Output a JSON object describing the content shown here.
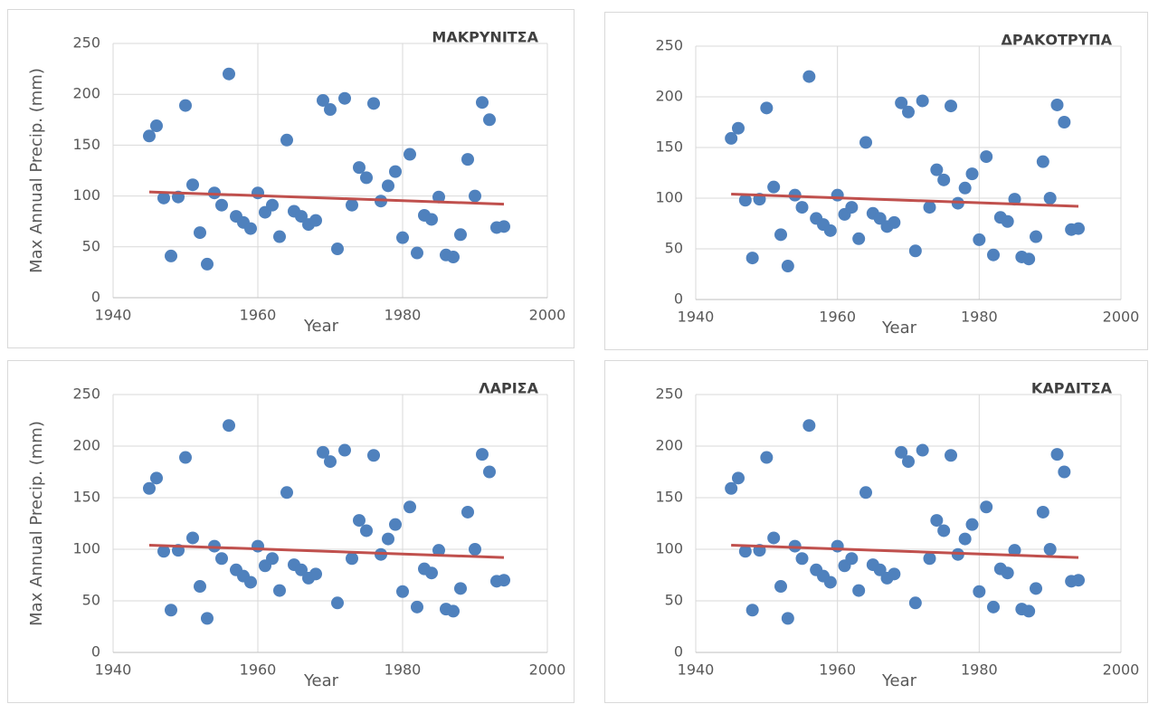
{
  "chart_data": [
    {
      "type": "scatter",
      "title": "ΜΑΚΡΥΝΙΤΣΑ",
      "xlabel": "Year",
      "ylabel": "Max Annual Precip. (mm)",
      "x": [
        1945,
        1946,
        1947,
        1948,
        1949,
        1950,
        1951,
        1952,
        1953,
        1954,
        1955,
        1956,
        1957,
        1958,
        1959,
        1960,
        1961,
        1962,
        1963,
        1964,
        1965,
        1966,
        1967,
        1968,
        1969,
        1970,
        1971,
        1972,
        1973,
        1974,
        1975,
        1976,
        1977,
        1978,
        1979,
        1980,
        1981,
        1982,
        1983,
        1984,
        1985,
        1986,
        1987,
        1988,
        1989,
        1990,
        1991,
        1992,
        1993,
        1994
      ],
      "values": [
        159,
        169,
        98,
        41,
        99,
        189,
        111,
        64,
        33,
        103,
        91,
        220,
        80,
        74,
        68,
        103,
        84,
        91,
        60,
        155,
        85,
        80,
        72,
        76,
        194,
        185,
        48,
        196,
        91,
        128,
        118,
        191,
        95,
        110,
        124,
        59,
        141,
        44,
        81,
        77,
        99,
        42,
        40,
        62,
        136,
        100,
        192,
        175,
        69,
        70
      ],
      "color": "#4f81bd",
      "trendline": {
        "x": [
          1945,
          1994
        ],
        "values": [
          104,
          92
        ],
        "color": "#c0504d"
      },
      "xlim": [
        1940,
        2000
      ],
      "xticks": [
        1940,
        1960,
        1980,
        2000
      ],
      "ylim": [
        0,
        250
      ],
      "yticks": [
        0,
        50,
        100,
        150,
        200,
        250
      ],
      "grid": true
    },
    {
      "type": "scatter",
      "title": "ΔΡΑΚΟΤΡΥΠΑ",
      "xlabel": "Year",
      "x": [
        1945,
        1946,
        1947,
        1948,
        1949,
        1950,
        1951,
        1952,
        1953,
        1954,
        1955,
        1956,
        1957,
        1958,
        1959,
        1960,
        1961,
        1962,
        1963,
        1964,
        1965,
        1966,
        1967,
        1968,
        1969,
        1970,
        1971,
        1972,
        1973,
        1974,
        1975,
        1976,
        1977,
        1978,
        1979,
        1980,
        1981,
        1982,
        1983,
        1984,
        1985,
        1986,
        1987,
        1988,
        1989,
        1990,
        1991,
        1992,
        1993,
        1994
      ],
      "values": [
        159,
        169,
        98,
        41,
        99,
        189,
        111,
        64,
        33,
        103,
        91,
        220,
        80,
        74,
        68,
        103,
        84,
        91,
        60,
        155,
        85,
        80,
        72,
        76,
        194,
        185,
        48,
        196,
        91,
        128,
        118,
        191,
        95,
        110,
        124,
        59,
        141,
        44,
        81,
        77,
        99,
        42,
        40,
        62,
        136,
        100,
        192,
        175,
        69,
        70
      ],
      "color": "#4f81bd",
      "trendline": {
        "x": [
          1945,
          1994
        ],
        "values": [
          104,
          92
        ],
        "color": "#c0504d"
      },
      "xlim": [
        1940,
        2000
      ],
      "xticks": [
        1940,
        1960,
        1980,
        2000
      ],
      "ylim": [
        0,
        250
      ],
      "yticks": [
        0,
        50,
        100,
        150,
        200,
        250
      ],
      "grid": true
    },
    {
      "type": "scatter",
      "title": "ΛΑΡΙΣΑ",
      "xlabel": "Year",
      "ylabel": "Max Annual Precip. (mm)",
      "x": [
        1945,
        1946,
        1947,
        1948,
        1949,
        1950,
        1951,
        1952,
        1953,
        1954,
        1955,
        1956,
        1957,
        1958,
        1959,
        1960,
        1961,
        1962,
        1963,
        1964,
        1965,
        1966,
        1967,
        1968,
        1969,
        1970,
        1971,
        1972,
        1973,
        1974,
        1975,
        1976,
        1977,
        1978,
        1979,
        1980,
        1981,
        1982,
        1983,
        1984,
        1985,
        1986,
        1987,
        1988,
        1989,
        1990,
        1991,
        1992,
        1993,
        1994
      ],
      "values": [
        159,
        169,
        98,
        41,
        99,
        189,
        111,
        64,
        33,
        103,
        91,
        220,
        80,
        74,
        68,
        103,
        84,
        91,
        60,
        155,
        85,
        80,
        72,
        76,
        194,
        185,
        48,
        196,
        91,
        128,
        118,
        191,
        95,
        110,
        124,
        59,
        141,
        44,
        81,
        77,
        99,
        42,
        40,
        62,
        136,
        100,
        192,
        175,
        69,
        70
      ],
      "color": "#4f81bd",
      "trendline": {
        "x": [
          1945,
          1994
        ],
        "values": [
          104,
          92
        ],
        "color": "#c0504d"
      },
      "xlim": [
        1940,
        2000
      ],
      "xticks": [
        1940,
        1960,
        1980,
        2000
      ],
      "ylim": [
        0,
        250
      ],
      "yticks": [
        0,
        50,
        100,
        150,
        200,
        250
      ],
      "grid": true
    },
    {
      "type": "scatter",
      "title": "ΚΑΡΔΙΤΣΑ",
      "xlabel": "Year",
      "x": [
        1945,
        1946,
        1947,
        1948,
        1949,
        1950,
        1951,
        1952,
        1953,
        1954,
        1955,
        1956,
        1957,
        1958,
        1959,
        1960,
        1961,
        1962,
        1963,
        1964,
        1965,
        1966,
        1967,
        1968,
        1969,
        1970,
        1971,
        1972,
        1973,
        1974,
        1975,
        1976,
        1977,
        1978,
        1979,
        1980,
        1981,
        1982,
        1983,
        1984,
        1985,
        1986,
        1987,
        1988,
        1989,
        1990,
        1991,
        1992,
        1993,
        1994
      ],
      "values": [
        159,
        169,
        98,
        41,
        99,
        189,
        111,
        64,
        33,
        103,
        91,
        220,
        80,
        74,
        68,
        103,
        84,
        91,
        60,
        155,
        85,
        80,
        72,
        76,
        194,
        185,
        48,
        196,
        91,
        128,
        118,
        191,
        95,
        110,
        124,
        59,
        141,
        44,
        81,
        77,
        99,
        42,
        40,
        62,
        136,
        100,
        192,
        175,
        69,
        70
      ],
      "color": "#4f81bd",
      "trendline": {
        "x": [
          1945,
          1994
        ],
        "values": [
          104,
          92
        ],
        "color": "#c0504d"
      },
      "xlim": [
        1940,
        2000
      ],
      "xticks": [
        1940,
        1960,
        1980,
        2000
      ],
      "ylim": [
        0,
        250
      ],
      "yticks": [
        0,
        50,
        100,
        150,
        200,
        250
      ],
      "grid": true
    }
  ]
}
